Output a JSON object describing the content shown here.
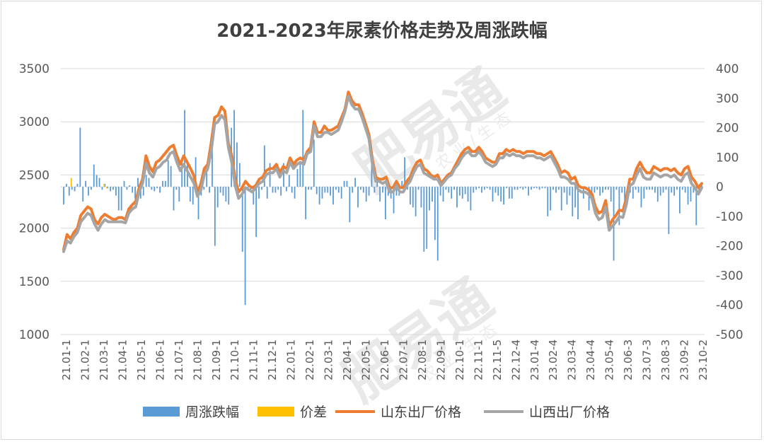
{
  "chart_data": {
    "type": "line",
    "title": "2021-2023年尿素价格走势及周涨跌幅",
    "y_left": {
      "ylim": [
        1000,
        3500
      ],
      "ticks": [
        1000,
        1500,
        2000,
        2500,
        3000,
        3500
      ]
    },
    "y_right": {
      "ylim": [
        -500,
        400
      ],
      "ticks": [
        -500,
        -400,
        -300,
        -200,
        -100,
        0,
        100,
        200,
        300,
        400
      ]
    },
    "x_tick_labels": [
      "21.01-1",
      "21.02-1",
      "21.03-1",
      "21.04-1",
      "21.05-1",
      "21.06-1",
      "21.07-1",
      "21.08-1",
      "21.09-1",
      "21.10-1",
      "21.11-1",
      "21.12-1",
      "22.01-1",
      "22.02-1",
      "22.03-1",
      "22.04-1",
      "22.05-1",
      "22.06-1",
      "22.07-1",
      "22.08-1",
      "22.09-1",
      "22.10-1",
      "22.11-1",
      "22.11-5",
      "22.12-4",
      "23.01-4",
      "23.02-4",
      "23.03-4",
      "23.04-4",
      "23.05-4",
      "23.06-3",
      "23.07-3",
      "23.08-3",
      "23.09-2",
      "23.10-2"
    ],
    "series": [
      {
        "name": "周涨跌幅",
        "kind": "bar",
        "axis": "right",
        "color": "#5b9bd5",
        "values": [
          -60,
          10,
          -30,
          -10,
          -15,
          10,
          200,
          -50,
          20,
          -30,
          -10,
          75,
          40,
          30,
          -10,
          10,
          -5,
          -15,
          -10,
          -30,
          -80,
          -80,
          20,
          -10,
          5,
          -20,
          -40,
          30,
          -40,
          -30,
          40,
          30,
          -10,
          -15,
          -5,
          -20,
          20,
          20,
          90,
          70,
          -80,
          -10,
          -50,
          80,
          260,
          90,
          -50,
          -60,
          100,
          -110,
          -30,
          -10,
          50,
          -20,
          150,
          -200,
          -70,
          -20,
          -30,
          -50,
          -60,
          200,
          260,
          150,
          80,
          -220,
          -400,
          -10,
          -20,
          -60,
          -170,
          -40,
          -10,
          140,
          -40,
          80,
          -20,
          -20,
          -10,
          -30,
          80,
          -15,
          40,
          -20,
          -40,
          60,
          80,
          260,
          -110,
          -10,
          -10,
          160,
          -25,
          -60,
          -40,
          -20,
          -20,
          -30,
          -60,
          -10,
          -20,
          -40,
          20,
          20,
          -120,
          -20,
          30,
          -70,
          -10,
          -20,
          -50,
          -30,
          80,
          -20,
          30,
          -50,
          -20,
          -110,
          -30,
          -40,
          -90,
          -30,
          -30,
          20,
          100,
          -10,
          -60,
          -70,
          -100,
          -10,
          -70,
          -220,
          -210,
          -80,
          -50,
          -180,
          -250,
          -30,
          -50,
          -10,
          -20,
          -40,
          -10,
          -70,
          -30,
          -40,
          -25,
          -50,
          -80,
          -20,
          -10,
          -5,
          -20,
          -10,
          -5,
          -10,
          -50,
          -20,
          -30,
          -50,
          -60,
          -5,
          -40,
          -40,
          -10,
          -10,
          -5,
          -10,
          -5,
          -30,
          -10,
          -5,
          -5,
          -10,
          -5,
          -5,
          -100,
          -80,
          -10,
          -20,
          -10,
          -80,
          -20,
          -60,
          -30,
          -100,
          -70,
          -110,
          -5,
          -40,
          -10,
          -80,
          -20,
          -20,
          -10,
          -30,
          -20,
          -10,
          -10,
          -50,
          -250,
          -10,
          -130,
          -20,
          -60,
          -20,
          -20,
          -40,
          -10,
          -20,
          -70,
          -40,
          -10,
          -10,
          -10,
          -20,
          -50,
          -30,
          -20,
          -10,
          -160,
          -20,
          -30,
          -10,
          -90,
          -10,
          -20,
          -60,
          -50,
          -20,
          -130,
          -20,
          10
        ]
      },
      {
        "name": "价差",
        "kind": "bar",
        "axis": "right",
        "color": "#ffc000",
        "values": [
          0,
          0,
          0,
          30,
          0,
          0,
          0,
          0,
          0,
          0,
          0,
          0,
          0,
          0,
          0,
          0,
          10,
          -5,
          0,
          0,
          0,
          0,
          0,
          0,
          0,
          0,
          0,
          0,
          0,
          0,
          0,
          0,
          0,
          0,
          0,
          0,
          0,
          0,
          0,
          0,
          0,
          0,
          0,
          0,
          0,
          0,
          0,
          0,
          0,
          0,
          0,
          0,
          0,
          0,
          0,
          0,
          0,
          0,
          0,
          0,
          0,
          0,
          0,
          0,
          0,
          0,
          0,
          0,
          0,
          0,
          0,
          0,
          0,
          0,
          0,
          0,
          0,
          0,
          0,
          0,
          0,
          0,
          0,
          0,
          0,
          0,
          0,
          0,
          0,
          0,
          0,
          0,
          0,
          0,
          0,
          0,
          0,
          0,
          0,
          0,
          0,
          0,
          0,
          0,
          0,
          0,
          0,
          0,
          0,
          0,
          0,
          0,
          0,
          0,
          0,
          0,
          0,
          0,
          0,
          0,
          0,
          0,
          0,
          0,
          0,
          0,
          0,
          0,
          0,
          0,
          0,
          0,
          0,
          0,
          0,
          0,
          0,
          0,
          0,
          0,
          0,
          0,
          0,
          0,
          0,
          0,
          0,
          0,
          0,
          0,
          0,
          0,
          0,
          0,
          0,
          0,
          0,
          0,
          0,
          0,
          0,
          0,
          0,
          0,
          0,
          0,
          0,
          0,
          0,
          0,
          0,
          0,
          0,
          0,
          0,
          0,
          0,
          0,
          0,
          0,
          0,
          0,
          0,
          0,
          0,
          0,
          0,
          0,
          0,
          0,
          0,
          0,
          0,
          0,
          0,
          0,
          0,
          0,
          0,
          0,
          0,
          0,
          0,
          0,
          0,
          0,
          0,
          0,
          0,
          0,
          0,
          0,
          0,
          0,
          0,
          0,
          0,
          0,
          0,
          0,
          0,
          0,
          0,
          0,
          0,
          0,
          0,
          0,
          0,
          0,
          0,
          0,
          0,
          0,
          0,
          0,
          0,
          0,
          0,
          0,
          0,
          0,
          0,
          0,
          0,
          0,
          0,
          0,
          0,
          0,
          0,
          0,
          0
        ]
      },
      {
        "name": "山东出厂价格",
        "kind": "line",
        "axis": "left",
        "color": "#ed7d31",
        "values": [
          1800,
          1940,
          1900,
          1960,
          2000,
          2120,
          2160,
          2200,
          2180,
          2080,
          2040,
          2100,
          2130,
          2110,
          2090,
          2080,
          2100,
          2100,
          2080,
          2180,
          2220,
          2250,
          2380,
          2460,
          2680,
          2580,
          2530,
          2620,
          2640,
          2680,
          2720,
          2760,
          2780,
          2680,
          2600,
          2680,
          2620,
          2560,
          2490,
          2330,
          2420,
          2560,
          2600,
          2800,
          3040,
          3060,
          3140,
          3100,
          2800,
          2680,
          2460,
          2340,
          2380,
          2440,
          2400,
          2380,
          2400,
          2460,
          2480,
          2540,
          2560,
          2560,
          2600,
          2520,
          2580,
          2560,
          2660,
          2600,
          2640,
          2660,
          2640,
          2720,
          2760,
          3000,
          2900,
          2900,
          2960,
          2920,
          2920,
          2940,
          2960,
          3040,
          3120,
          3280,
          3200,
          3160,
          3160,
          3080,
          2980,
          2880,
          2640,
          2480,
          2460,
          2460,
          2480,
          2380,
          2380,
          2440,
          2380,
          2380,
          2440,
          2480,
          2560,
          2620,
          2640,
          2560,
          2540,
          2500,
          2480,
          2500,
          2420,
          2460,
          2500,
          2520,
          2580,
          2640,
          2700,
          2740,
          2760,
          2720,
          2720,
          2760,
          2720,
          2660,
          2640,
          2620,
          2620,
          2700,
          2700,
          2740,
          2720,
          2740,
          2720,
          2720,
          2700,
          2720,
          2720,
          2720,
          2700,
          2700,
          2680,
          2700,
          2720,
          2660,
          2600,
          2520,
          2540,
          2520,
          2460,
          2480,
          2400,
          2380,
          2380,
          2360,
          2320,
          2200,
          2140,
          2160,
          2260,
          2020,
          2080,
          2120,
          2170,
          2160,
          2280,
          2460,
          2460,
          2560,
          2620,
          2560,
          2520,
          2520,
          2580,
          2560,
          2540,
          2560,
          2560,
          2540,
          2560,
          2520,
          2500,
          2560,
          2580,
          2480,
          2440,
          2380,
          2420
        ]
      },
      {
        "name": "山西出厂价格",
        "kind": "line",
        "axis": "left",
        "color": "#a5a5a5",
        "values": [
          1780,
          1880,
          1860,
          1920,
          1960,
          2060,
          2100,
          2140,
          2120,
          2040,
          1980,
          2040,
          2080,
          2060,
          2060,
          2060,
          2060,
          2060,
          2050,
          2140,
          2180,
          2200,
          2340,
          2420,
          2610,
          2520,
          2480,
          2560,
          2580,
          2620,
          2640,
          2700,
          2720,
          2620,
          2540,
          2600,
          2540,
          2480,
          2420,
          2300,
          2360,
          2500,
          2560,
          2720,
          2980,
          3000,
          3060,
          3020,
          2760,
          2620,
          2400,
          2280,
          2320,
          2380,
          2360,
          2340,
          2380,
          2420,
          2440,
          2500,
          2520,
          2520,
          2560,
          2480,
          2540,
          2520,
          2620,
          2560,
          2600,
          2620,
          2600,
          2700,
          2720,
          2960,
          2860,
          2860,
          2900,
          2900,
          2880,
          2900,
          2920,
          3000,
          3100,
          3240,
          3160,
          3120,
          3120,
          3040,
          2940,
          2840,
          2600,
          2440,
          2440,
          2420,
          2440,
          2340,
          2340,
          2400,
          2340,
          2340,
          2400,
          2440,
          2520,
          2580,
          2600,
          2520,
          2500,
          2480,
          2460,
          2460,
          2400,
          2440,
          2480,
          2500,
          2560,
          2600,
          2660,
          2700,
          2720,
          2680,
          2680,
          2720,
          2680,
          2620,
          2600,
          2580,
          2600,
          2660,
          2660,
          2700,
          2680,
          2700,
          2680,
          2680,
          2660,
          2680,
          2680,
          2680,
          2660,
          2660,
          2640,
          2660,
          2680,
          2620,
          2560,
          2480,
          2480,
          2460,
          2420,
          2420,
          2360,
          2340,
          2340,
          2320,
          2280,
          2140,
          2080,
          2100,
          2200,
          1980,
          2020,
          2060,
          2110,
          2100,
          2220,
          2400,
          2420,
          2500,
          2560,
          2480,
          2460,
          2460,
          2520,
          2500,
          2480,
          2500,
          2500,
          2480,
          2500,
          2460,
          2440,
          2500,
          2520,
          2420,
          2380,
          2320,
          2380
        ]
      }
    ],
    "legend": {
      "position": "bottom"
    },
    "grid": true
  },
  "watermark": {
    "text": "肥易通",
    "sub": "农 业 / 生 态"
  }
}
